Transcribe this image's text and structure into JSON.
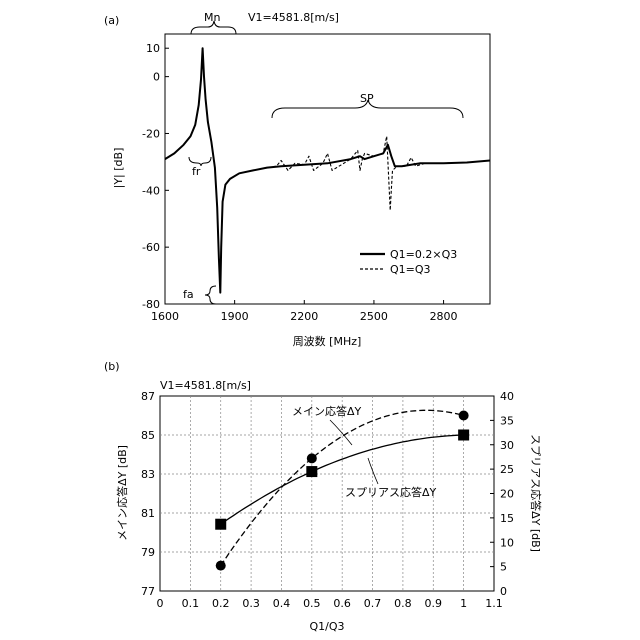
{
  "figure_labels": {
    "a": "(a)",
    "b": "(b)"
  },
  "chart_data": [
    {
      "type": "line",
      "panel": "(a)",
      "xlabel": "周波数 [MHz]",
      "ylabel": "|Y| [dB]",
      "xlim": [
        1600,
        3000
      ],
      "ylim": [
        -80,
        15
      ],
      "xticks": [
        1600,
        1900,
        2200,
        2500,
        2800
      ],
      "yticks": [
        10,
        0,
        -20,
        -40,
        -60,
        -80
      ],
      "grid": false,
      "legend_position": "lower-right",
      "annotations": {
        "mn": "Mn",
        "v1": "V1=4581.8[m/s]",
        "sp": "SP",
        "fr": "fr",
        "fa": "fa"
      },
      "series": [
        {
          "name": "Q1=0.2×Q3",
          "style": "solid",
          "x": [
            1600,
            1640,
            1680,
            1710,
            1730,
            1745,
            1755,
            1762,
            1768,
            1775,
            1785,
            1800,
            1815,
            1825,
            1832,
            1838,
            1842,
            1848,
            1860,
            1880,
            1920,
            1980,
            2040,
            2100,
            2200,
            2300,
            2400,
            2440,
            2460,
            2500,
            2540,
            2560,
            2575,
            2590,
            2620,
            2700,
            2800,
            2900,
            3000
          ],
          "y": [
            -29,
            -27,
            -24,
            -21,
            -17,
            -10,
            -1,
            10,
            0,
            -8,
            -16,
            -23,
            -32,
            -46,
            -64,
            -76,
            -60,
            -44,
            -38,
            -36,
            -34,
            -33,
            -32,
            -31.5,
            -31,
            -30.5,
            -29,
            -28,
            -29,
            -28,
            -27,
            -24,
            -28,
            -31.5,
            -31.5,
            -30.5,
            -30.5,
            -30.2,
            -29.5
          ]
        },
        {
          "name": "Q1=Q3",
          "style": "dashed",
          "x": [
            1600,
            1640,
            1680,
            1710,
            1730,
            1745,
            1755,
            1762,
            1768,
            1775,
            1785,
            1800,
            1815,
            1825,
            1832,
            1838,
            1842,
            1848,
            1860,
            1880,
            1920,
            1980,
            2040,
            2080,
            2100,
            2130,
            2160,
            2200,
            2220,
            2240,
            2280,
            2300,
            2320,
            2400,
            2430,
            2440,
            2450,
            2460,
            2500,
            2540,
            2555,
            2565,
            2570,
            2575,
            2580,
            2600,
            2640,
            2660,
            2680,
            2720,
            2760,
            2800,
            2840,
            2900,
            3000
          ],
          "y": [
            -29,
            -27,
            -24,
            -21,
            -17,
            -10,
            -1,
            10,
            0,
            -8,
            -16,
            -23,
            -32,
            -46,
            -64,
            -76,
            -60,
            -44,
            -38,
            -36,
            -34,
            -33,
            -32,
            -31.5,
            -29.5,
            -33,
            -30.5,
            -31,
            -28,
            -33,
            -30.5,
            -27,
            -33,
            -29,
            -26,
            -33,
            -29,
            -27,
            -28,
            -27,
            -21,
            -38,
            -47,
            -40,
            -33,
            -31.5,
            -31.5,
            -28.5,
            -31.5,
            -30.5,
            -30.5,
            -30.5,
            -30.2,
            -30.2,
            -29.5
          ]
        }
      ]
    },
    {
      "type": "line",
      "panel": "(b)",
      "xlabel": "Q1/Q3",
      "ylabel_left": "メイン応答ΔY [dB]",
      "ylabel_right": "スプリアス応答ΔY [dB]",
      "xlim": [
        0,
        1.1
      ],
      "ylim_left": [
        77,
        87
      ],
      "ylim_right": [
        0,
        40
      ],
      "xticks": [
        0,
        0.1,
        0.2,
        0.3,
        0.4,
        0.5,
        0.6,
        0.7,
        0.8,
        0.9,
        1,
        1.1
      ],
      "yticks_left": [
        77,
        79,
        81,
        83,
        85,
        87
      ],
      "yticks_right": [
        0,
        5,
        10,
        15,
        20,
        25,
        30,
        35,
        40
      ],
      "grid": true,
      "annotations": {
        "v1": "V1=4581.8[m/s]",
        "main_label": "メイン応答ΔY",
        "spur_label": "スプリアス応答ΔY"
      },
      "series": [
        {
          "name": "メイン応答ΔY",
          "style": "dashed",
          "marker": "circle",
          "axis": "left",
          "x": [
            0.2,
            0.5,
            1.0
          ],
          "y": [
            78.3,
            83.8,
            86.0
          ]
        },
        {
          "name": "スプリアス応答ΔY",
          "style": "solid",
          "marker": "square",
          "axis": "right",
          "x": [
            0.2,
            0.5,
            1.0
          ],
          "y": [
            13.7,
            24.5,
            32.0
          ]
        }
      ]
    }
  ]
}
